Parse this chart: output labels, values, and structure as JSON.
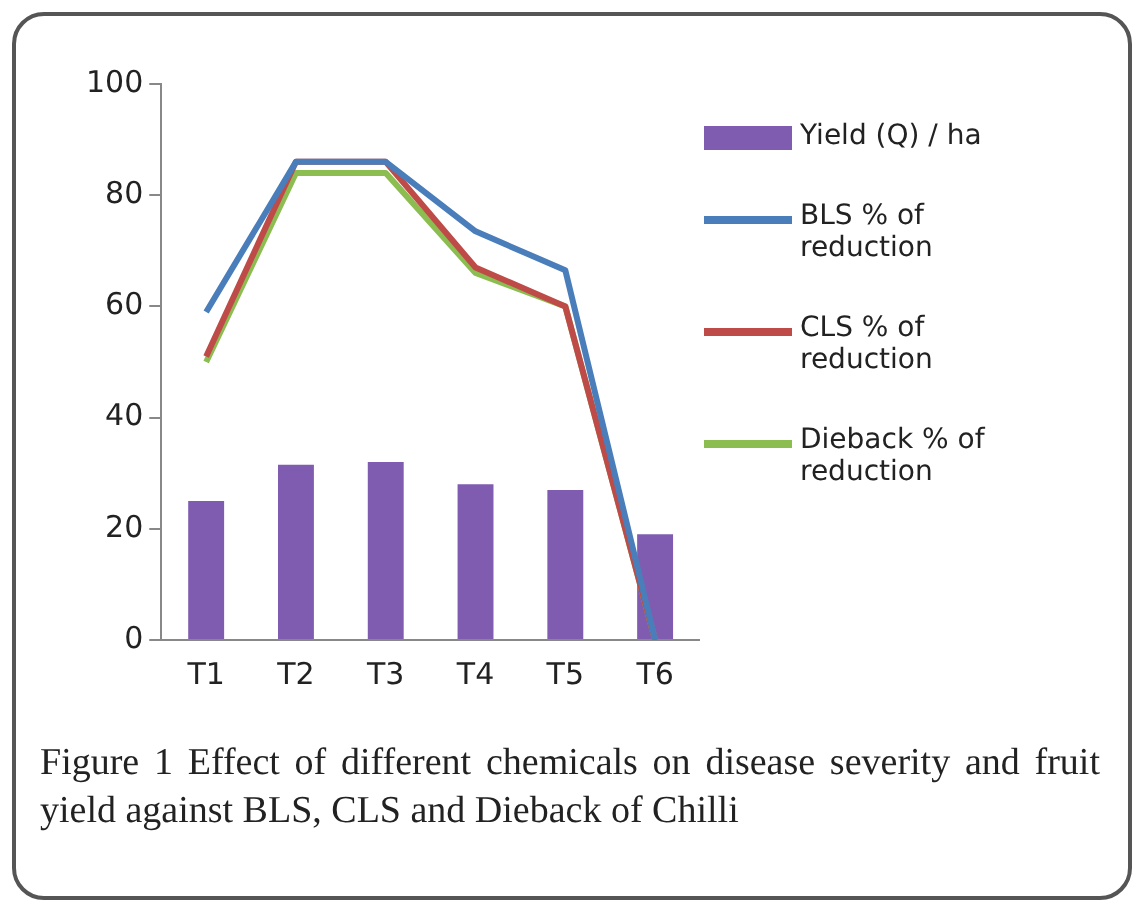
{
  "chart_data": {
    "type": "bar",
    "categories": [
      "T1",
      "T2",
      "T3",
      "T4",
      "T5",
      "T6"
    ],
    "series": [
      {
        "name": "Yield (Q) / ha",
        "color": "#7f5cb0",
        "values": [
          25,
          31.5,
          32,
          28,
          27,
          19
        ]
      },
      {
        "name": "BLS % of reduction",
        "type": "line",
        "color": "#4a7ebb",
        "values": [
          59,
          86,
          86,
          73.5,
          66.5,
          0
        ]
      },
      {
        "name": "CLS % of reduction",
        "type": "line",
        "color": "#be4b48",
        "values": [
          51,
          86,
          86,
          67,
          60,
          0
        ]
      },
      {
        "name": "Dieback % of reduction",
        "type": "line",
        "color": "#8cbd50",
        "values": [
          50,
          84,
          84,
          66,
          60,
          0
        ]
      }
    ],
    "ylim": [
      0,
      100
    ],
    "yticks": [
      0,
      20,
      40,
      60,
      80,
      100
    ],
    "grid": false,
    "legend": "right",
    "marker": "none",
    "annotations": [
      "Figure 1 Effect of different chemicals on disease severity and fruit yield against BLS, CLS and Dieback of Chilli"
    ]
  }
}
